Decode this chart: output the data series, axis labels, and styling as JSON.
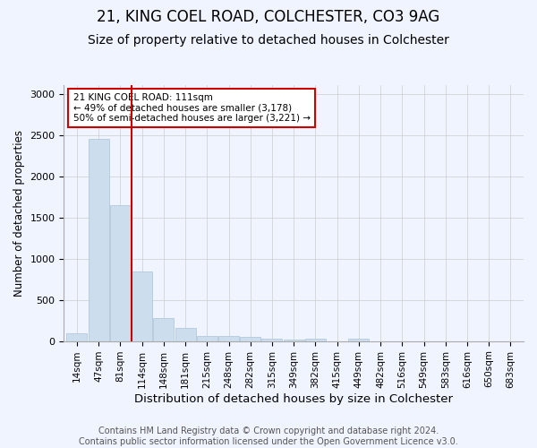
{
  "title": "21, KING COEL ROAD, COLCHESTER, CO3 9AG",
  "subtitle": "Size of property relative to detached houses in Colchester",
  "xlabel": "Distribution of detached houses by size in Colchester",
  "ylabel": "Number of detached properties",
  "bins": [
    "14sqm",
    "47sqm",
    "81sqm",
    "114sqm",
    "148sqm",
    "181sqm",
    "215sqm",
    "248sqm",
    "282sqm",
    "315sqm",
    "349sqm",
    "382sqm",
    "415sqm",
    "449sqm",
    "482sqm",
    "516sqm",
    "549sqm",
    "583sqm",
    "616sqm",
    "650sqm",
    "683sqm"
  ],
  "values": [
    97,
    2450,
    1650,
    850,
    275,
    155,
    65,
    65,
    55,
    30,
    20,
    30,
    0,
    25,
    0,
    0,
    0,
    0,
    0,
    0,
    0
  ],
  "bar_color": "#ccdded",
  "bar_edge_color": "#a8c4d8",
  "vline_color": "#cc0000",
  "vline_pos": 2.5,
  "annotation_text": "21 KING COEL ROAD: 111sqm\n← 49% of detached houses are smaller (3,178)\n50% of semi-detached houses are larger (3,221) →",
  "annotation_box_color": "#cc0000",
  "ylim": [
    0,
    3100
  ],
  "yticks": [
    0,
    500,
    1000,
    1500,
    2000,
    2500,
    3000
  ],
  "footer": "Contains HM Land Registry data © Crown copyright and database right 2024.\nContains public sector information licensed under the Open Government Licence v3.0.",
  "title_fontsize": 12,
  "subtitle_fontsize": 10,
  "xlabel_fontsize": 9.5,
  "ylabel_fontsize": 8.5,
  "tick_fontsize": 7.5,
  "footer_fontsize": 7,
  "bg_color": "#f0f4ff"
}
